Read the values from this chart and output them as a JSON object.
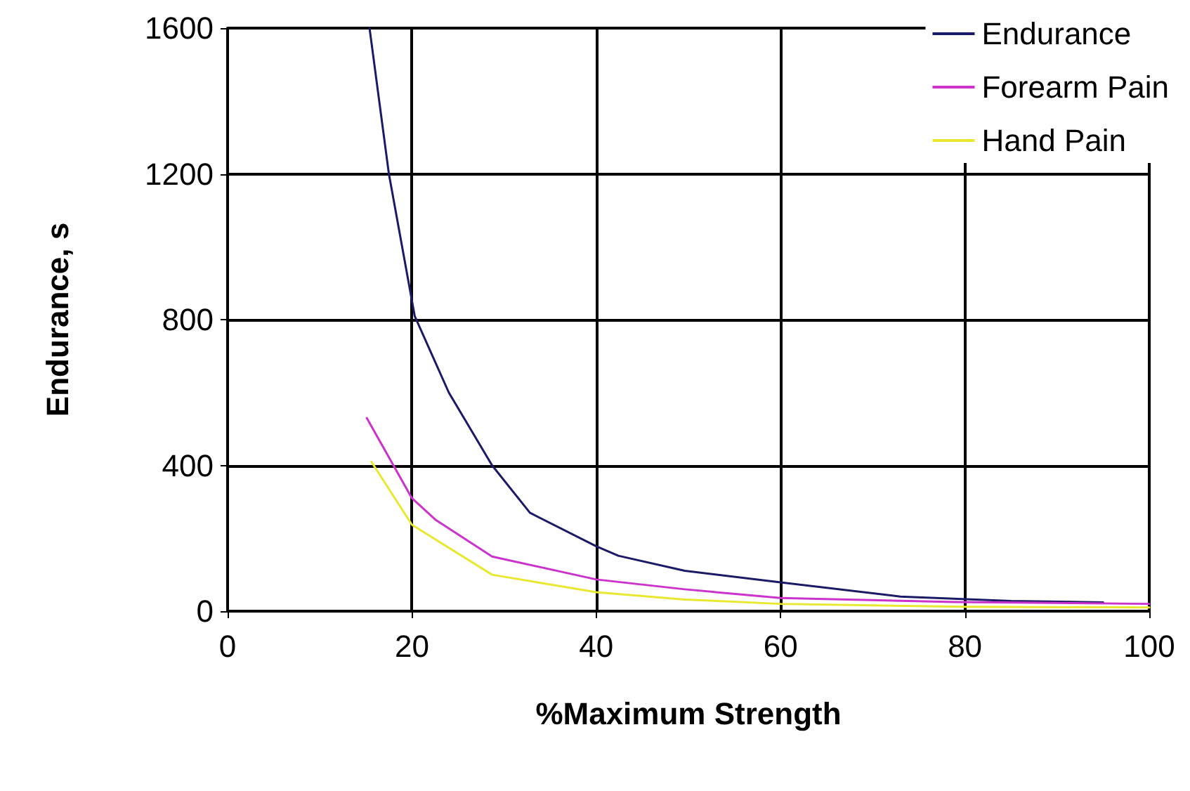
{
  "chart_data": {
    "type": "line",
    "xlabel": "%Maximum Strength",
    "ylabel": "Endurance, s",
    "xlim": [
      0,
      100
    ],
    "xticks": [
      0,
      20,
      40,
      60,
      80,
      100
    ],
    "ylim": [
      0,
      1600
    ],
    "yticks": [
      0,
      400,
      800,
      1200,
      1600
    ],
    "grid": true,
    "legend": "top right",
    "marker": "none",
    "line_style": "solid",
    "series": [
      {
        "name": "Endurance",
        "color": "#1a1a66",
        "x": [
          15.4,
          17.5,
          20.3,
          24,
          28.7,
          32.8,
          40,
          42.4,
          49.6,
          60,
          73,
          85,
          95
        ],
        "values": [
          1600,
          1200,
          810,
          600,
          400,
          270,
          178,
          152,
          111,
          79,
          40,
          28,
          24
        ]
      },
      {
        "name": "Forearm Pain",
        "color": "#cc33cc",
        "x": [
          15.1,
          20,
          22.6,
          28.7,
          40,
          49.6,
          60,
          79,
          100
        ],
        "values": [
          530,
          310,
          250,
          150,
          87,
          60,
          36,
          25,
          20
        ]
      },
      {
        "name": "Hand Pain",
        "color": "#e8e830",
        "x": [
          15.6,
          20,
          28.7,
          40,
          49.6,
          60,
          80,
          100
        ],
        "values": [
          410,
          237,
          100,
          52,
          32,
          20,
          12,
          10
        ]
      }
    ]
  }
}
